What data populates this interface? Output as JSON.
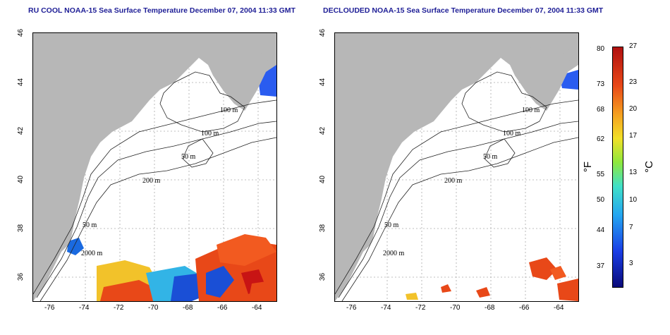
{
  "left_panel": {
    "title": "RU COOL NOAA-15 Sea Surface Temperature December 07, 2004 11:33 GMT",
    "contours": [
      "100 m",
      "100 m",
      "50 m",
      "200 m",
      "50 m",
      "2000 m"
    ]
  },
  "right_panel": {
    "title": "DECLOUDED NOAA-15 Sea Surface Temperature December 07, 2004 11:33 GMT",
    "contours": [
      "100 m",
      "100 m",
      "50 m",
      "200 m",
      "50 m",
      "2000 m"
    ]
  },
  "axes": {
    "lon_ticks": [
      "-76",
      "-74",
      "-72",
      "-70",
      "-68",
      "-66",
      "-64"
    ],
    "lat_ticks": [
      "46",
      "44",
      "42",
      "40",
      "38",
      "36"
    ]
  },
  "colorbar": {
    "fahrenheit_unit": "°F",
    "celsius_unit": "°C",
    "fahrenheit_ticks": [
      "80",
      "73",
      "68",
      "62",
      "55",
      "50",
      "44",
      "37"
    ],
    "celsius_ticks": [
      "27",
      "23",
      "20",
      "17",
      "13",
      "10",
      "7",
      "3"
    ]
  },
  "colors": {
    "land": "#b7b7b7",
    "title": "#1e1e96",
    "warm": "#e8401a",
    "cold": "#1a4fd6"
  }
}
